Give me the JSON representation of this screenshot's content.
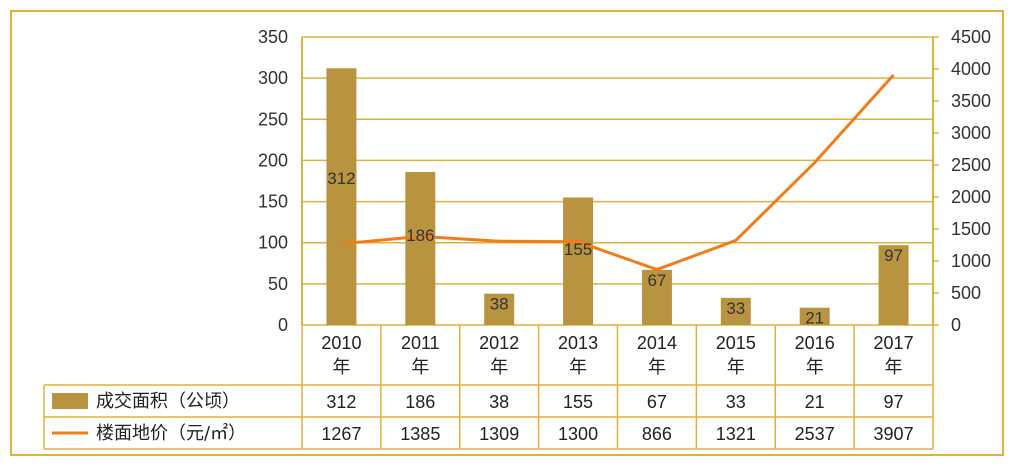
{
  "chart_data": {
    "type": "bar+line",
    "categories": [
      "2010\n年",
      "2011\n年",
      "2012\n年",
      "2013\n年",
      "2014\n年",
      "2015\n年",
      "2016\n年",
      "2017\n年"
    ],
    "series": [
      {
        "name": "成交面积（公顷）",
        "type": "bar",
        "axis": "left",
        "values": [
          312,
          186,
          38,
          155,
          67,
          33,
          21,
          97
        ],
        "color": "#b89440"
      },
      {
        "name": "楼面地价（元/㎡）",
        "type": "line",
        "axis": "right",
        "values": [
          1267,
          1385,
          1309,
          1300,
          866,
          1321,
          2537,
          3907
        ],
        "color": "#f07d1a"
      }
    ],
    "left_axis": {
      "range": [
        0,
        350
      ],
      "ticks": [
        "0",
        "50",
        "100",
        "150",
        "200",
        "250",
        "300",
        "350"
      ]
    },
    "right_axis": {
      "range": [
        0,
        4500
      ],
      "ticks": [
        "0",
        "500",
        "1000",
        "1500",
        "2000",
        "2500",
        "3000",
        "3500",
        "4000",
        "4500"
      ]
    },
    "grid": "horizontal",
    "legend": "data-table-below",
    "axis_color": "#e0b23c"
  }
}
